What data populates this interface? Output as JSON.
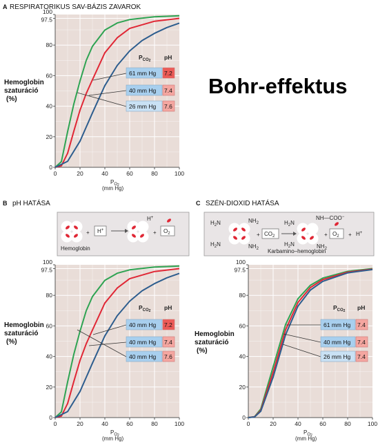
{
  "main_title": "Bohr-effektus",
  "colors": {
    "plot_bg": "#e9ddd8",
    "grid": "#ffffff",
    "green": "#2ea352",
    "red": "#e02735",
    "blue": "#2d5d8e",
    "box_blue": "#a8cfee",
    "box_pink": "#f4a6a0",
    "box_red": "#ec5b57",
    "diagram_bg": "#e9e5e6"
  },
  "chart_data": [
    {
      "id": "A",
      "type": "line",
      "letter": "A",
      "title": "RESPIRATORIKUS SAV-BÁZIS ZAVAROK",
      "ylabel": [
        "Hemoglobin",
        "szaturáció",
        "(%)"
      ],
      "xlabel_main": "P",
      "xlabel_sub": "O",
      "xlabel_sub2": "2",
      "xlabel_unit": "(mm Hg)",
      "xlim": [
        0,
        100
      ],
      "ylim": [
        0,
        100
      ],
      "xticks": [
        "0",
        "20",
        "40",
        "60",
        "80",
        "100"
      ],
      "xtick_values": [
        0,
        20,
        40,
        60,
        80,
        100
      ],
      "yticks": [
        "0",
        "20",
        "40",
        "60",
        "80",
        "97.5",
        "100"
      ],
      "ytick_values": [
        0,
        20,
        40,
        60,
        80,
        97.5,
        100
      ],
      "legend_header_pco2": "P",
      "legend_header_sub": "CO",
      "legend_header_sub2": "2",
      "legend_header_ph": "pH",
      "series": [
        {
          "key": "green",
          "p50": 18,
          "x": [
            0,
            5,
            10,
            15,
            20,
            25,
            30,
            40,
            50,
            60,
            80,
            100
          ],
          "y": [
            0,
            3.7,
            23.3,
            41.4,
            56.5,
            69.9,
            79.2,
            89.8,
            94.5,
            96.7,
            98.5,
            99.2
          ]
        },
        {
          "key": "red",
          "p50": 26,
          "x": [
            0,
            5,
            10,
            15,
            20,
            25,
            30,
            40,
            50,
            60,
            80,
            100
          ],
          "y": [
            0,
            1,
            9.2,
            23.6,
            37.4,
            48.3,
            57.3,
            75,
            84.8,
            90.9,
            95.6,
            97.5
          ]
        },
        {
          "key": "blue",
          "p50": 37,
          "x": [
            0,
            10,
            20,
            30,
            40,
            50,
            60,
            70,
            80,
            90,
            100
          ],
          "y": [
            0,
            3.9,
            17.1,
            35.6,
            53.5,
            66.7,
            76.2,
            83,
            87.7,
            91.5,
            94.4
          ]
        }
      ],
      "legend": [
        {
          "pco2": "61 mm Hg",
          "ph": "7.2",
          "box": "blue",
          "ph_box": "red_dark",
          "curve": "blue"
        },
        {
          "pco2": "40 mm Hg",
          "ph": "7.4",
          "box": "blue",
          "ph_box": "pink",
          "curve": "red"
        },
        {
          "pco2": "26 mm Hg",
          "ph": "7.6",
          "box": "blue_light",
          "ph_box": "pink",
          "curve": "green"
        }
      ]
    },
    {
      "id": "B",
      "type": "line",
      "letter": "B",
      "title": "pH HATÁSA",
      "ylabel": [
        "Hemoglobin",
        "szaturáció",
        "(%)"
      ],
      "xlabel_main": "P",
      "xlabel_sub": "O",
      "xlabel_sub2": "2",
      "xlabel_unit": "(mm Hg)",
      "xlim": [
        0,
        100
      ],
      "ylim": [
        0,
        100
      ],
      "xticks": [
        "0",
        "20",
        "40",
        "60",
        "80",
        "100"
      ],
      "xtick_values": [
        0,
        20,
        40,
        60,
        80,
        100
      ],
      "yticks": [
        "0",
        "20",
        "40",
        "60",
        "80",
        "97.5",
        "100"
      ],
      "ytick_values": [
        0,
        20,
        40,
        60,
        80,
        97.5,
        100
      ],
      "legend_header_pco2": "P",
      "legend_header_sub": "CO",
      "legend_header_sub2": "2",
      "legend_header_ph": "pH",
      "series": [
        {
          "key": "green",
          "p50": 18,
          "x": [
            0,
            5,
            10,
            15,
            20,
            25,
            30,
            40,
            50,
            60,
            80,
            100
          ],
          "y": [
            0,
            3.7,
            23.3,
            41.4,
            56.5,
            69.9,
            79.2,
            89.8,
            94.5,
            96.7,
            98.5,
            99.2
          ]
        },
        {
          "key": "red",
          "p50": 26,
          "x": [
            0,
            5,
            10,
            15,
            20,
            25,
            30,
            40,
            50,
            60,
            80,
            100
          ],
          "y": [
            0,
            1,
            9.2,
            23.6,
            37.4,
            48.3,
            57.3,
            75,
            84.8,
            90.9,
            95.6,
            97.5
          ]
        },
        {
          "key": "blue",
          "p50": 37,
          "x": [
            0,
            10,
            20,
            30,
            40,
            50,
            60,
            70,
            80,
            90,
            100
          ],
          "y": [
            0,
            3.9,
            17.1,
            35.6,
            53.5,
            66.7,
            76.2,
            83,
            87.7,
            91.5,
            94.4
          ]
        }
      ],
      "legend": [
        {
          "pco2": "40 mm Hg",
          "ph": "7.2",
          "box": "blue",
          "ph_box": "red_dark",
          "curve": "blue"
        },
        {
          "pco2": "40 mm Hg",
          "ph": "7.4",
          "box": "blue",
          "ph_box": "pink",
          "curve": "red"
        },
        {
          "pco2": "40 mm Hg",
          "ph": "7.6",
          "box": "blue",
          "ph_box": "pink",
          "curve": "green"
        }
      ]
    },
    {
      "id": "C",
      "type": "line",
      "letter": "C",
      "title": "SZÉN-DIOXID HATÁSA",
      "ylabel": [
        "Hemoglobin",
        "szaturáció",
        "(%)"
      ],
      "xlabel_main": "P",
      "xlabel_sub": "O",
      "xlabel_sub2": "2",
      "xlabel_unit": "(mm Hg)",
      "xlim": [
        0,
        100
      ],
      "ylim": [
        0,
        100
      ],
      "xticks": [
        "0",
        "20",
        "40",
        "60",
        "80",
        "100"
      ],
      "xtick_values": [
        0,
        20,
        40,
        60,
        80,
        100
      ],
      "yticks": [
        "0",
        "20",
        "40",
        "60",
        "80",
        "97.5",
        "100"
      ],
      "ytick_values": [
        0,
        20,
        40,
        60,
        80,
        97.5,
        100
      ],
      "legend_header_pco2": "P",
      "legend_header_sub": "CO",
      "legend_header_sub2": "2",
      "legend_header_ph": "pH",
      "series": [
        {
          "key": "green",
          "p50": 25,
          "x": [
            0,
            5,
            10,
            20,
            30,
            40,
            50,
            60,
            80,
            100
          ],
          "y": [
            0,
            0.6,
            5.6,
            33.2,
            60.9,
            77.8,
            86.6,
            91.3,
            95.7,
            97.5
          ]
        },
        {
          "key": "red",
          "p50": 26.5,
          "x": [
            0,
            5,
            10,
            20,
            30,
            40,
            50,
            60,
            80,
            100
          ],
          "y": [
            0,
            0.5,
            4.7,
            29.6,
            57.5,
            75.4,
            85.1,
            90.3,
            95.2,
            97.2
          ]
        },
        {
          "key": "blue",
          "p50": 28,
          "x": [
            0,
            5,
            10,
            20,
            30,
            40,
            50,
            60,
            80,
            100
          ],
          "y": [
            0,
            0.4,
            4.1,
            26.5,
            54.2,
            73,
            83.5,
            89.2,
            94.7,
            96.9
          ]
        }
      ],
      "legend": [
        {
          "pco2": "61 mm Hg",
          "ph": "7.4",
          "box": "blue",
          "ph_box": "pink",
          "curve": "blue"
        },
        {
          "pco2": "40 mm Hg",
          "ph": "7.4",
          "box": "blue",
          "ph_box": "pink",
          "curve": "red"
        },
        {
          "pco2": "26 mm Hg",
          "ph": "7.4",
          "box": "blue_light",
          "ph_box": "pink",
          "curve": "green"
        }
      ]
    }
  ],
  "diagram_b": {
    "hemoglobin_label": "Hemoglobin",
    "plus": "+",
    "h_ion": "H",
    "h_sup": "+",
    "o2_main": "O",
    "o2_sub": "2"
  },
  "diagram_c": {
    "h2n": "H",
    "h2n_sub": "2",
    "h2n_n": "N",
    "nh2": "NH",
    "nh2_sub": "2",
    "co2_main": "CO",
    "co2_sub": "2",
    "nh_coo": "NH—COO",
    "nh_coo_sup": "−",
    "o2_main": "O",
    "o2_sub": "2",
    "plus": "+",
    "h_ion": "H",
    "h_sup": "+",
    "karbamino_label": "Karbamino–hemoglobin"
  }
}
